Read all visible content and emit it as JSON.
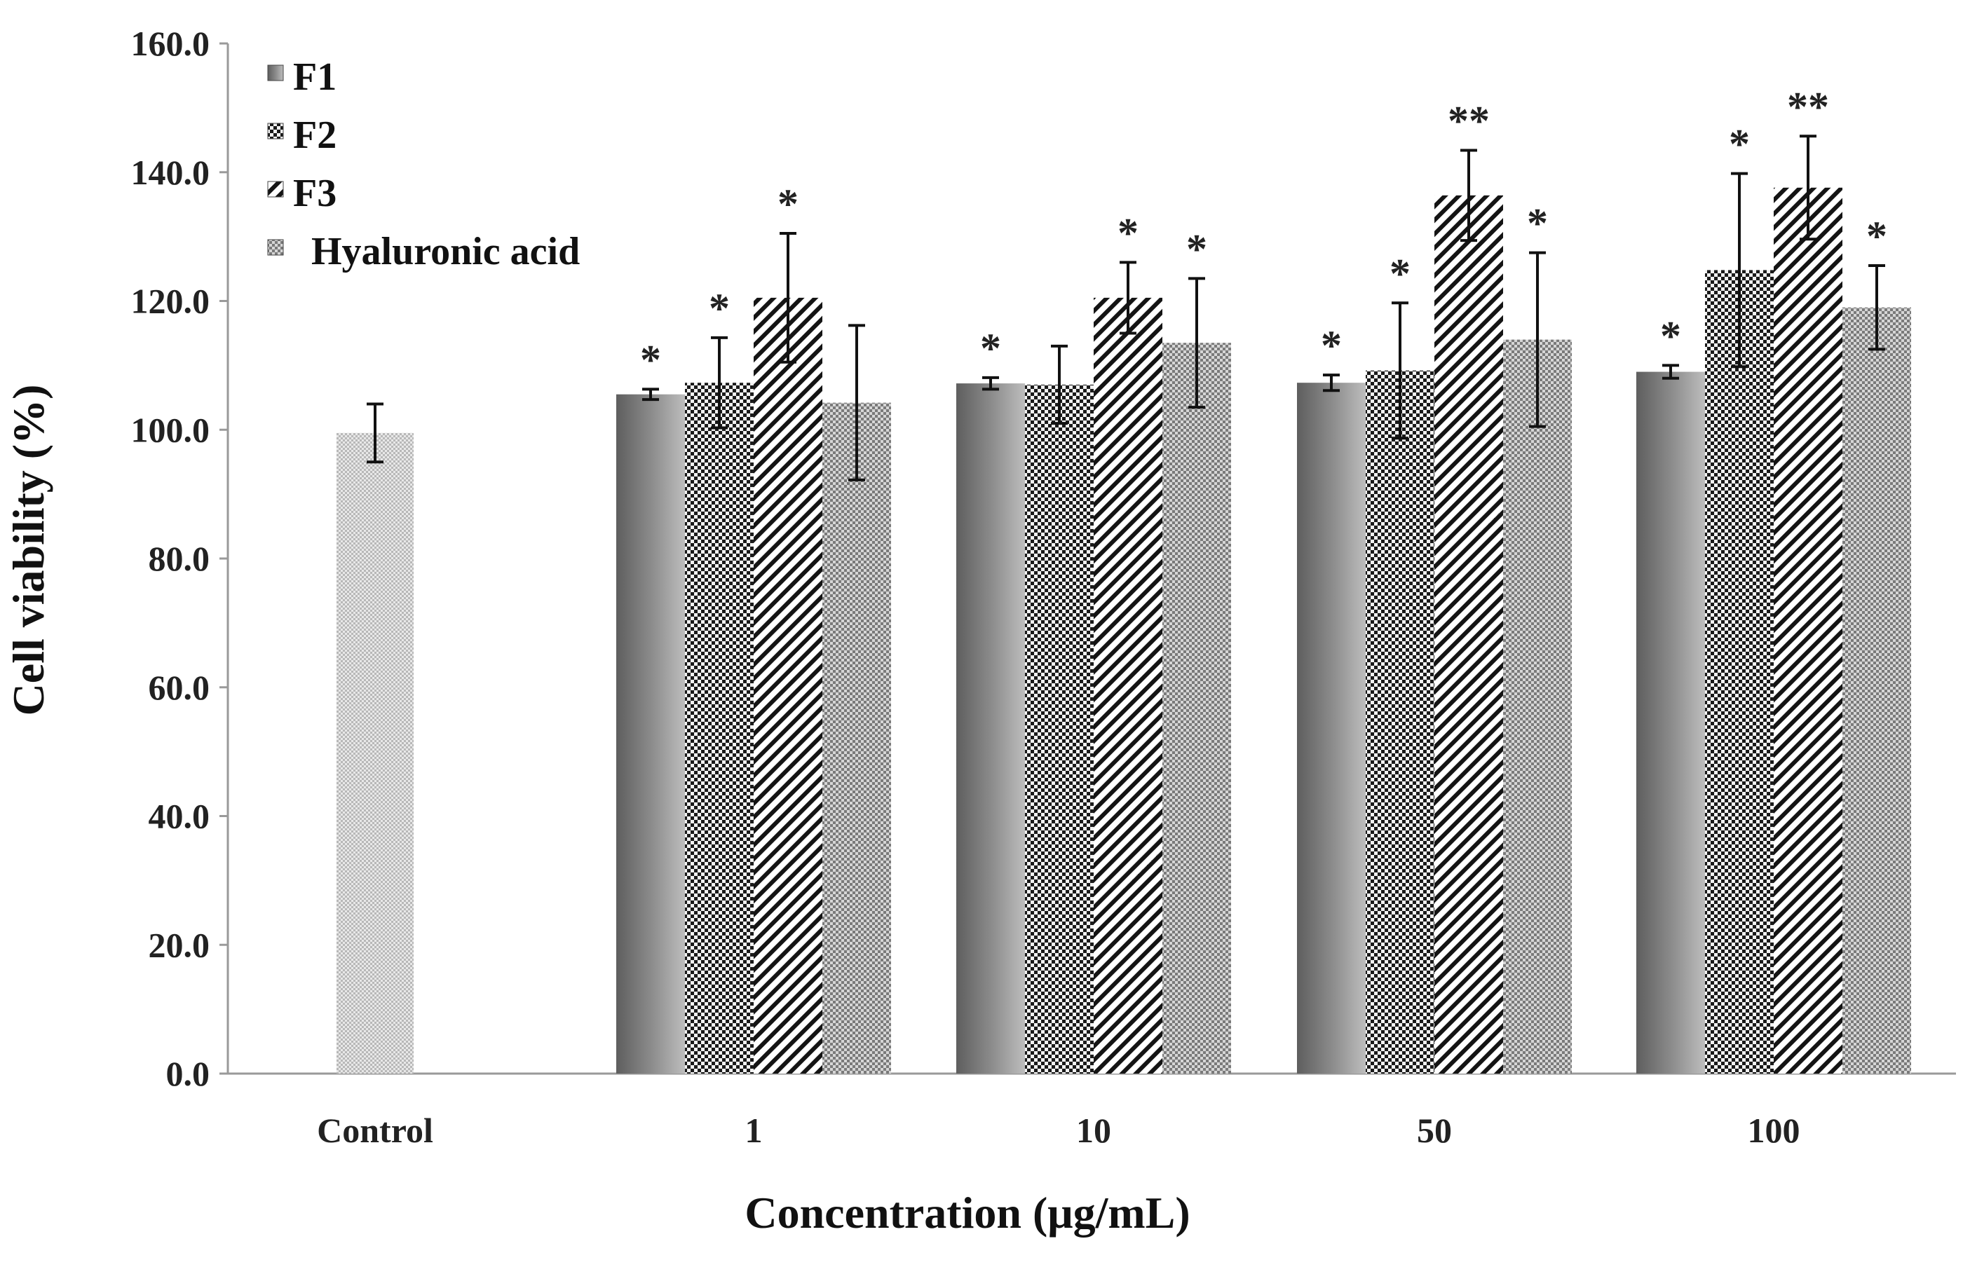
{
  "chart_data": {
    "type": "bar",
    "title": "",
    "xlabel": "Concentration (μg/mL)",
    "ylabel": "Cell viability (%)",
    "ylim": [
      0,
      160
    ],
    "yticks": [
      "0.0",
      "20.0",
      "40.0",
      "60.0",
      "80.0",
      "100.0",
      "120.0",
      "140.0",
      "160.0"
    ],
    "grid": false,
    "legend_position": "top-left",
    "control": {
      "category": "Control",
      "value": 99.5,
      "error": 4.5
    },
    "categories": [
      "1",
      "10",
      "50",
      "100"
    ],
    "series": [
      {
        "name": "F1",
        "pattern": "gradient",
        "values": [
          105.5,
          107.2,
          107.3,
          109.0
        ],
        "errors": [
          0.8,
          0.9,
          1.2,
          1.0
        ],
        "significance": [
          "*",
          "*",
          "*",
          "*"
        ]
      },
      {
        "name": "F2",
        "pattern": "checker",
        "values": [
          107.3,
          107.0,
          109.2,
          124.8
        ],
        "errors": [
          7.0,
          6.0,
          10.5,
          15.0
        ],
        "significance": [
          "*",
          "",
          "*",
          "*"
        ]
      },
      {
        "name": "F3",
        "pattern": "diagonal",
        "values": [
          120.5,
          120.5,
          136.4,
          137.6
        ],
        "errors": [
          10.0,
          5.5,
          7.0,
          8.0
        ],
        "significance": [
          "*",
          "*",
          "**",
          "**"
        ]
      },
      {
        "name": "Hyaluronic acid",
        "pattern": "dots",
        "values": [
          104.2,
          113.5,
          114.0,
          119.0
        ],
        "errors": [
          12.0,
          10.0,
          13.5,
          6.5
        ],
        "significance": [
          "",
          "*",
          "*",
          "*"
        ]
      }
    ]
  }
}
